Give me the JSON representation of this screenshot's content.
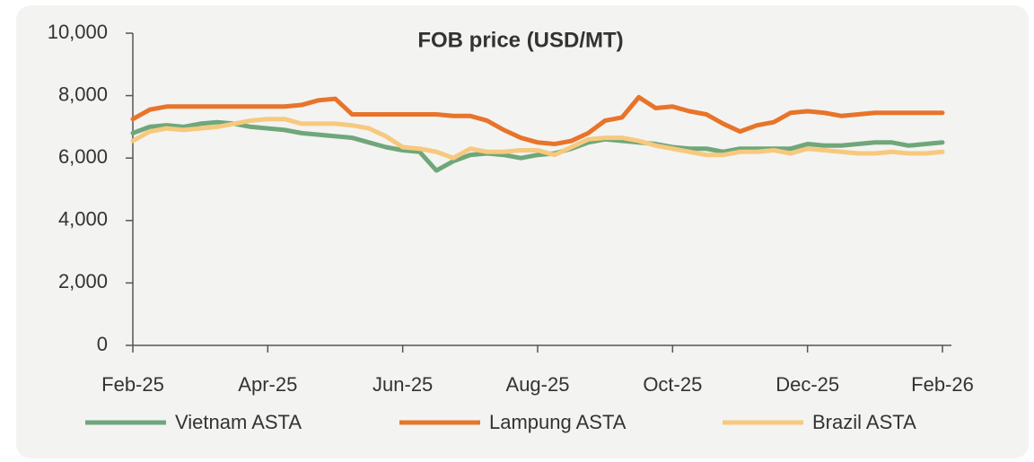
{
  "chart_data": {
    "type": "line",
    "title": "FOB price (USD/MT)",
    "categories": [
      "Feb-25",
      null,
      null,
      null,
      null,
      null,
      null,
      null,
      "Apr-25",
      null,
      null,
      null,
      null,
      null,
      null,
      null,
      "Jun-25",
      null,
      null,
      null,
      null,
      null,
      null,
      null,
      "Aug-25",
      null,
      null,
      null,
      null,
      null,
      null,
      null,
      "Oct-25",
      null,
      null,
      null,
      null,
      null,
      null,
      null,
      "Dec-25",
      null,
      null,
      null,
      null,
      null,
      null,
      null,
      "Feb-26"
    ],
    "series": [
      {
        "name": "Vietnam ASTA",
        "color": "#6fa77a",
        "values": [
          6800,
          7000,
          7050,
          7000,
          7100,
          7150,
          7100,
          7000,
          6950,
          6900,
          6800,
          6750,
          6700,
          6650,
          6500,
          6350,
          6250,
          6200,
          5600,
          5900,
          6100,
          6150,
          6100,
          6000,
          6100,
          6150,
          6300,
          6500,
          6600,
          6550,
          6500,
          6450,
          6350,
          6300,
          6300,
          6200,
          6300,
          6300,
          6300,
          6300,
          6450,
          6400,
          6400,
          6450,
          6500,
          6500,
          6400,
          6450,
          6500
        ]
      },
      {
        "name": "Lampung ASTA",
        "color": "#e8742a",
        "values": [
          7250,
          7550,
          7650,
          7650,
          7650,
          7650,
          7650,
          7650,
          7650,
          7650,
          7700,
          7850,
          7900,
          7400,
          7400,
          7400,
          7400,
          7400,
          7400,
          7350,
          7350,
          7200,
          6900,
          6650,
          6500,
          6450,
          6550,
          6800,
          7200,
          7300,
          7950,
          7600,
          7650,
          7500,
          7400,
          7100,
          6850,
          7050,
          7150,
          7450,
          7500,
          7450,
          7350,
          7400,
          7450,
          7450,
          7450,
          7450,
          7450
        ]
      },
      {
        "name": "Brazil ASTA",
        "color": "#f7c97e",
        "values": [
          6550,
          6850,
          6950,
          6900,
          6950,
          7000,
          7100,
          7200,
          7250,
          7250,
          7100,
          7100,
          7100,
          7050,
          6950,
          6700,
          6350,
          6300,
          6200,
          6000,
          6300,
          6200,
          6200,
          6250,
          6250,
          6100,
          6350,
          6600,
          6650,
          6650,
          6550,
          6400,
          6300,
          6200,
          6100,
          6100,
          6200,
          6200,
          6250,
          6150,
          6300,
          6250,
          6200,
          6150,
          6150,
          6200,
          6150,
          6150,
          6200
        ]
      }
    ],
    "ylim": [
      0,
      10000
    ],
    "yticks": [
      0,
      {
        "value": 2000,
        "label": "2,000"
      },
      {
        "value": 4000,
        "label": "4,000"
      },
      {
        "value": 6000,
        "label": "6,000"
      },
      {
        "value": 8000,
        "label": "8,000"
      },
      {
        "value": 10000,
        "label": "10,000"
      }
    ]
  }
}
